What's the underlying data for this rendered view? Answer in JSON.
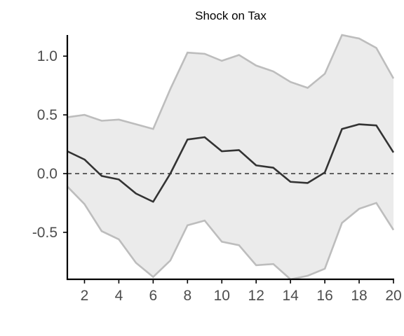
{
  "chart_data": {
    "type": "line",
    "title": "Shock on Tax",
    "xlabel": "",
    "ylabel": "",
    "x": [
      1,
      2,
      3,
      4,
      5,
      6,
      7,
      8,
      9,
      10,
      11,
      12,
      13,
      14,
      15,
      16,
      17,
      18,
      19,
      20
    ],
    "series": [
      {
        "role": "irf",
        "values": [
          0.19,
          0.12,
          -0.02,
          -0.05,
          -0.17,
          -0.24,
          0.0,
          0.29,
          0.31,
          0.19,
          0.2,
          0.07,
          0.05,
          -0.07,
          -0.08,
          0.01,
          0.38,
          0.42,
          0.41,
          0.18
        ]
      },
      {
        "role": "upper",
        "values": [
          0.48,
          0.5,
          0.45,
          0.46,
          0.42,
          0.38,
          0.72,
          1.03,
          1.02,
          0.96,
          1.01,
          0.92,
          0.87,
          0.78,
          0.73,
          0.85,
          1.18,
          1.15,
          1.07,
          0.81
        ]
      },
      {
        "role": "lower",
        "values": [
          -0.11,
          -0.26,
          -0.49,
          -0.56,
          -0.76,
          -0.88,
          -0.74,
          -0.44,
          -0.4,
          -0.58,
          -0.61,
          -0.78,
          -0.77,
          -0.9,
          -0.87,
          -0.81,
          -0.42,
          -0.3,
          -0.25,
          -0.48
        ]
      }
    ],
    "reference_line": 0,
    "xlim": [
      1,
      20
    ],
    "ylim": [
      -0.9,
      1.18
    ],
    "xticks": [
      2,
      4,
      6,
      8,
      10,
      12,
      14,
      16,
      18,
      20
    ],
    "xtick_labels": [
      "2",
      "4",
      "6",
      "8",
      "10",
      "12",
      "14",
      "16",
      "18",
      "20"
    ],
    "yticks": [
      -0.5,
      0.0,
      0.5,
      1.0
    ],
    "ytick_labels": [
      "-0.5",
      "0.0",
      "0.5",
      "1.0"
    ],
    "grid": false,
    "legend": "none",
    "colors": {
      "band_fill": "#ebebeb",
      "band_edge": "#bdbdbd",
      "irf_line": "#333333",
      "zero_line": "#333333",
      "axis": "#000000",
      "tick_text": "#4d4d4d"
    }
  }
}
